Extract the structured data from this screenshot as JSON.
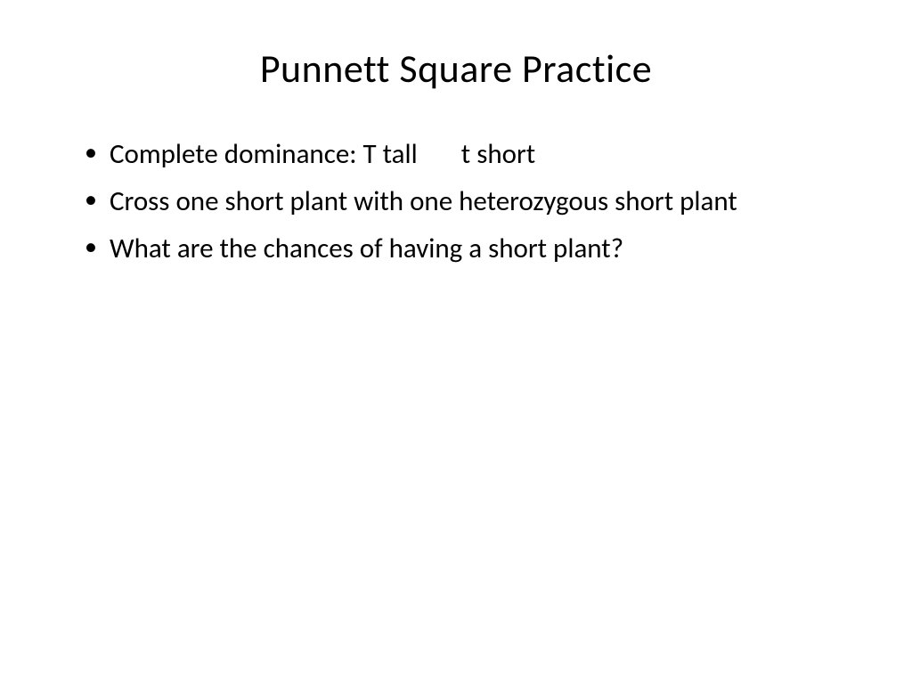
{
  "slide": {
    "title": "Punnett Square Practice",
    "title_fontsize": 44,
    "body_fontsize": 31,
    "background_color": "#ffffff",
    "text_color": "#000000",
    "bullets": [
      "Complete dominance: T tall       t short",
      "Cross one short plant with one heterozygous short plant",
      "What are the chances of having a short plant?"
    ]
  }
}
